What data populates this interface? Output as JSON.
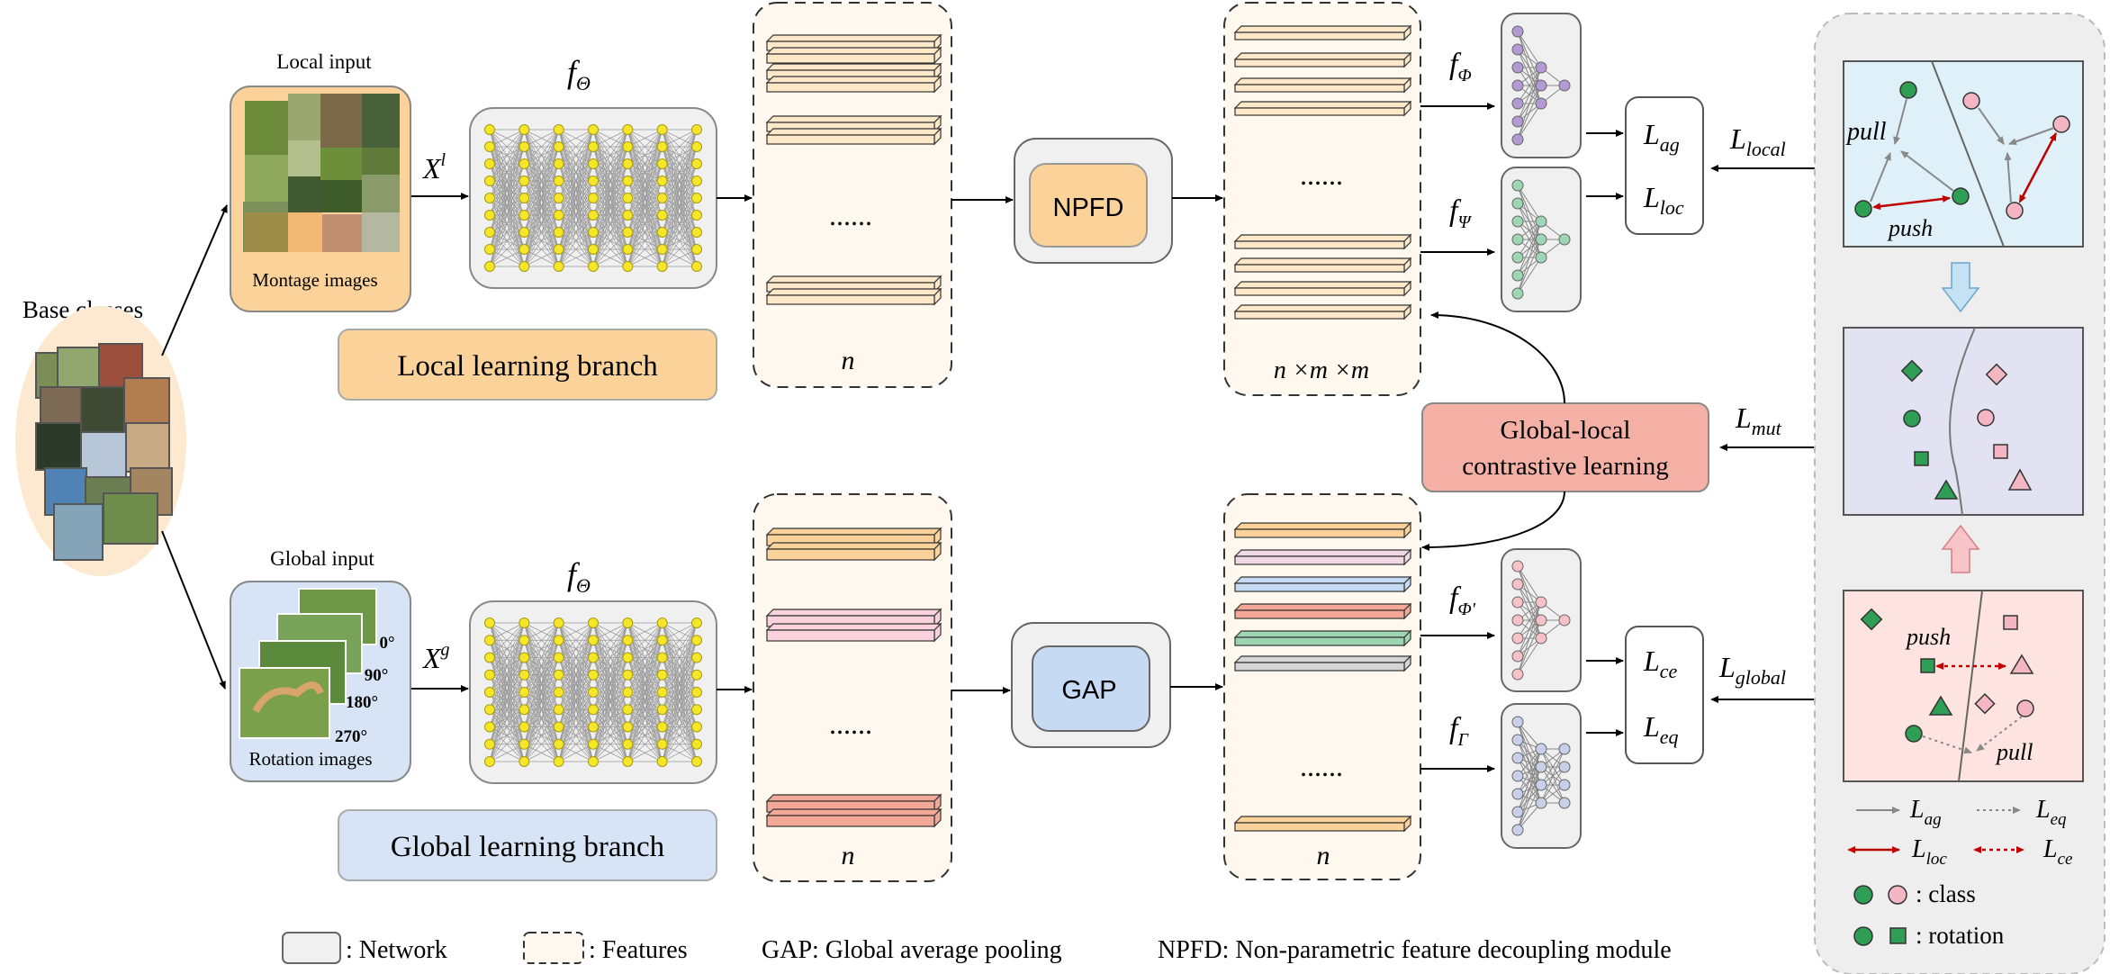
{
  "labels": {
    "base_classes": "Base classes",
    "local_input": "Local input",
    "montage_images": "Montage images",
    "global_input": "Global input",
    "rotation_images": "Rotation images",
    "x_local": "X",
    "x_local_sup": "l",
    "x_global": "X",
    "x_global_sup": "g",
    "f_theta": "f",
    "f_theta_sub": "Θ",
    "local_branch": "Local learning branch",
    "global_branch": "Global learning branch",
    "dots": "......",
    "n": "n",
    "nmm": "n ×m ×m",
    "npfd": "NPFD",
    "gap": "GAP",
    "f_phi": "f",
    "f_phi_sub": "Φ",
    "f_psi": "f",
    "f_psi_sub": "Ψ",
    "f_phi2": "f",
    "f_phi2_sub": "Φ'",
    "f_gamma": "f",
    "f_gamma_sub": "Γ",
    "l_ag": "L",
    "l_ag_sub": "ag",
    "l_loc": "L",
    "l_loc_sub": "loc",
    "l_ce": "L",
    "l_ce_sub": "ce",
    "l_eq": "L",
    "l_eq_sub": "eq",
    "l_local": "L",
    "l_local_sub": "local",
    "l_global": "L",
    "l_global_sub": "global",
    "l_mut": "L",
    "l_mut_sub": "mut",
    "contrastive_1": "Global-local",
    "contrastive_2": "contrastive learning",
    "pull": "pull",
    "push": "push",
    "class_legend": ": class",
    "rotation_legend": ": rotation",
    "deg0": "0°",
    "deg90": "90°",
    "deg180": "180°",
    "deg270": "270°"
  },
  "legend_bottom": {
    "network": ":  Network",
    "features": ":  Features",
    "gap_def": "GAP:  Global average pooling",
    "npfd_def": "NPFD:  Non-parametric feature decoupling module"
  },
  "colors": {
    "local_orange": "#fbd39a",
    "global_blue": "#d6e4f5",
    "feature_bg": "#fef8ee",
    "network_gray": "#f0f0f0",
    "node_yellow": "#f5e62a",
    "red_box": "#f4b0a4",
    "panel_blue": "#dff0f8",
    "panel_lavender": "#e2e2f2",
    "panel_pink": "#fde4e0",
    "green": "#2e9e55",
    "pink": "#f5b6c4",
    "dark_red": "#c00000"
  }
}
